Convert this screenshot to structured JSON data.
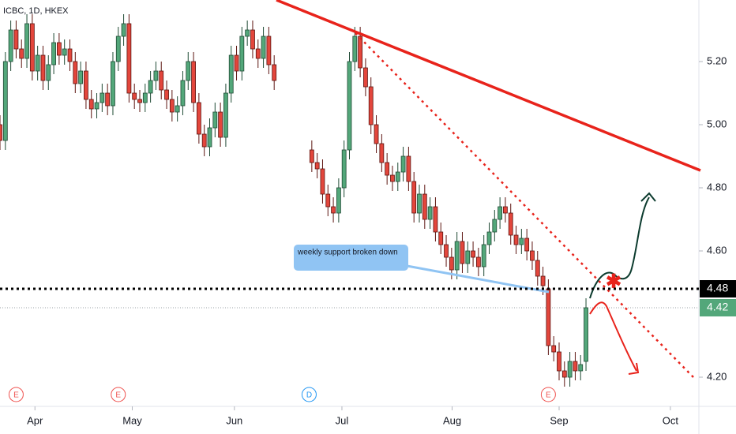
{
  "chart_data": {
    "type": "candlestick",
    "title": "ICBC, 1D, HKEX",
    "annotation": "weekly support broken down",
    "events": [
      {
        "label": "E",
        "x": 3
      },
      {
        "label": "E",
        "x": 22
      },
      {
        "label": "D",
        "x": 57.5
      },
      {
        "label": "E",
        "x": 102
      }
    ],
    "support_level": {
      "value": 4.48,
      "label": "4.48"
    },
    "last_price": {
      "value": 4.42,
      "label": "4.42"
    },
    "up_color": "#53a77a",
    "down_color": "#e3463c",
    "xlim": [
      0,
      130
    ],
    "ylim": [
      4.1075,
      5.395
    ],
    "xticks": [
      {
        "value": 6.5,
        "label": "Apr"
      },
      {
        "value": 24.6,
        "label": "May"
      },
      {
        "value": 43.6,
        "label": "Jun"
      },
      {
        "value": 63.6,
        "label": "Jul"
      },
      {
        "value": 84.1,
        "label": "Aug"
      },
      {
        "value": 104,
        "label": "Sep"
      },
      {
        "value": 124.7,
        "label": "Oct"
      }
    ],
    "yticks": [
      {
        "value": 4.2,
        "label": "4.20"
      },
      {
        "value": 4.6,
        "label": "4.60"
      },
      {
        "value": 4.8,
        "label": "4.80"
      },
      {
        "value": 5.0,
        "label": "5.00"
      },
      {
        "value": 5.2,
        "label": "5.20"
      }
    ],
    "open": [
      5.0,
      4.95,
      5.2,
      5.3,
      5.24,
      5.21,
      5.32,
      5.17,
      5.22,
      5.14,
      5.19,
      5.26,
      5.22,
      5.24,
      5.2,
      5.13,
      5.17,
      5.08,
      5.05,
      5.07,
      5.1,
      5.06,
      5.2,
      5.28,
      5.32,
      5.1,
      5.08,
      5.07,
      5.1,
      5.14,
      5.17,
      5.11,
      5.08,
      5.04,
      5.06,
      5.14,
      5.2,
      5.07,
      4.97,
      4.93,
      4.99,
      5.04,
      4.96,
      5.1,
      5.22,
      5.17,
      5.28,
      5.3,
      5.24,
      5.21,
      5.28,
      5.19,
      null,
      null,
      null,
      null,
      null,
      null,
      4.92,
      4.88,
      4.86,
      4.78,
      4.74,
      4.72,
      4.8,
      4.92,
      5.2,
      5.28,
      5.18,
      5.12,
      5.0,
      4.94,
      4.88,
      4.84,
      4.82,
      4.85,
      4.9,
      4.82,
      4.72,
      4.78,
      4.7,
      4.74,
      4.66,
      4.62,
      4.58,
      4.54,
      4.63,
      4.56,
      4.6,
      4.58,
      4.55,
      4.62,
      4.66,
      4.7,
      4.74,
      4.72,
      4.65,
      4.62,
      4.64,
      4.6,
      4.57,
      4.52,
      4.48,
      4.3,
      4.28,
      4.22,
      4.2,
      4.25,
      4.22,
      4.25
    ],
    "close": [
      4.95,
      5.2,
      5.3,
      5.24,
      5.21,
      5.32,
      5.17,
      5.22,
      5.14,
      5.19,
      5.26,
      5.22,
      5.24,
      5.2,
      5.13,
      5.17,
      5.08,
      5.05,
      5.07,
      5.1,
      5.06,
      5.2,
      5.28,
      5.32,
      5.1,
      5.08,
      5.07,
      5.1,
      5.14,
      5.17,
      5.11,
      5.08,
      5.04,
      5.06,
      5.14,
      5.2,
      5.07,
      4.97,
      4.93,
      4.99,
      5.04,
      4.96,
      5.1,
      5.22,
      5.17,
      5.28,
      5.3,
      5.24,
      5.21,
      5.28,
      5.19,
      5.14,
      null,
      null,
      null,
      null,
      null,
      null,
      4.88,
      4.86,
      4.78,
      4.74,
      4.72,
      4.8,
      4.92,
      5.2,
      5.28,
      5.18,
      5.12,
      5.0,
      4.94,
      4.88,
      4.84,
      4.82,
      4.85,
      4.9,
      4.82,
      4.72,
      4.78,
      4.7,
      4.74,
      4.66,
      4.62,
      4.58,
      4.54,
      4.63,
      4.56,
      4.6,
      4.58,
      4.55,
      4.62,
      4.66,
      4.7,
      4.74,
      4.72,
      4.65,
      4.62,
      4.64,
      4.6,
      4.57,
      4.52,
      4.49,
      4.3,
      4.28,
      4.22,
      4.2,
      4.25,
      4.22,
      4.24,
      4.42
    ],
    "high": [
      5.03,
      5.23,
      5.33,
      5.33,
      5.27,
      5.35,
      5.35,
      5.25,
      5.25,
      5.22,
      5.29,
      5.29,
      5.27,
      5.27,
      5.23,
      5.2,
      5.2,
      5.11,
      5.1,
      5.13,
      5.13,
      5.23,
      5.31,
      5.35,
      5.35,
      5.13,
      5.11,
      5.13,
      5.17,
      5.2,
      5.2,
      5.14,
      5.11,
      5.09,
      5.17,
      5.23,
      5.23,
      5.1,
      5.0,
      5.02,
      5.07,
      5.07,
      5.13,
      5.25,
      5.25,
      5.31,
      5.33,
      5.33,
      5.27,
      5.31,
      5.31,
      5.22,
      null,
      null,
      null,
      null,
      null,
      null,
      4.95,
      4.91,
      4.89,
      4.81,
      4.77,
      4.83,
      4.95,
      5.23,
      5.31,
      5.31,
      5.21,
      5.15,
      5.03,
      4.97,
      4.91,
      4.87,
      4.88,
      4.93,
      4.93,
      4.85,
      4.81,
      4.81,
      4.77,
      4.77,
      4.69,
      4.65,
      4.61,
      4.66,
      4.66,
      4.63,
      4.63,
      4.61,
      4.65,
      4.69,
      4.73,
      4.77,
      4.77,
      4.75,
      4.68,
      4.67,
      4.67,
      4.63,
      4.6,
      4.55,
      4.51,
      4.33,
      4.31,
      4.25,
      4.28,
      4.28,
      4.27,
      4.45
    ],
    "low": [
      4.92,
      4.92,
      5.17,
      5.21,
      5.18,
      5.18,
      5.14,
      5.14,
      5.11,
      5.11,
      5.16,
      5.19,
      5.19,
      5.17,
      5.1,
      5.1,
      5.05,
      5.02,
      5.02,
      5.04,
      5.03,
      5.03,
      5.17,
      5.25,
      5.07,
      5.05,
      5.04,
      5.04,
      5.07,
      5.11,
      5.08,
      5.05,
      5.01,
      5.01,
      5.03,
      5.11,
      5.04,
      4.94,
      4.9,
      4.9,
      4.96,
      4.93,
      4.93,
      5.07,
      5.14,
      5.14,
      5.25,
      5.21,
      5.18,
      5.18,
      5.16,
      5.11,
      null,
      null,
      null,
      null,
      null,
      null,
      4.85,
      4.83,
      4.75,
      4.71,
      4.69,
      4.69,
      4.77,
      4.89,
      5.17,
      5.15,
      5.09,
      4.97,
      4.91,
      4.85,
      4.81,
      4.79,
      4.79,
      4.82,
      4.79,
      4.69,
      4.69,
      4.67,
      4.67,
      4.63,
      4.59,
      4.55,
      4.51,
      4.51,
      4.53,
      4.53,
      4.55,
      4.52,
      4.52,
      4.59,
      4.63,
      4.67,
      4.69,
      4.62,
      4.59,
      4.59,
      4.57,
      4.54,
      4.49,
      4.46,
      4.27,
      4.25,
      4.19,
      4.17,
      4.17,
      4.19,
      4.19,
      4.22
    ]
  }
}
